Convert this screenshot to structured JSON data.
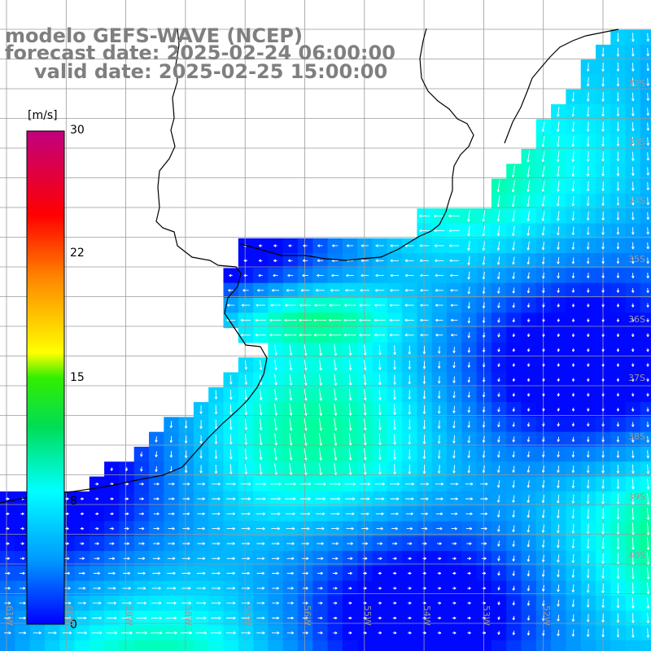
{
  "header": {
    "line1": "modelo GEFS-WAVE (NCEP)",
    "line2": "forecast date: 2025-02-24 06:00:00",
    "line3": "valid date: 2025-02-25 15:00:00"
  },
  "colorbar": {
    "unit": "[m/s]",
    "ticks": [
      "30",
      "22",
      "15",
      "8",
      "0"
    ],
    "colors": [
      "#0000ff",
      "#00aaff",
      "#00ffff",
      "#00ff00",
      "#ffff00",
      "#ff8800",
      "#ff0000",
      "#c0007f"
    ]
  },
  "axes": {
    "lat_labels": [
      "32S",
      "33S",
      "34S",
      "35S",
      "36S",
      "37S",
      "38S",
      "39S",
      "40S"
    ],
    "lon_labels": [
      "61W",
      "60W",
      "59W",
      "58W",
      "57W",
      "56W",
      "55W",
      "54W",
      "53W",
      "52W"
    ]
  },
  "field": {
    "variable": "wind speed",
    "unit": "m/s",
    "range": [
      0,
      30
    ]
  },
  "colors": {
    "land": "#ffffff",
    "grid": "#9a9a9a",
    "coast": "#000000",
    "header_text": "#7f7f7f",
    "arrows": "#ffffff"
  }
}
